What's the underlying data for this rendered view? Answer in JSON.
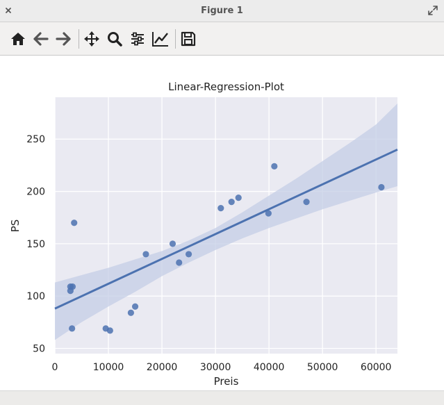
{
  "window": {
    "title": "Figure 1",
    "close_icon": "close-icon",
    "maximize_icon": "maximize-icon"
  },
  "toolbar": {
    "buttons": [
      {
        "name": "home-button",
        "icon": "home-icon"
      },
      {
        "name": "back-button",
        "icon": "arrow-left-icon"
      },
      {
        "name": "forward-button",
        "icon": "arrow-right-icon"
      },
      {
        "name": "pan-button",
        "icon": "move-icon"
      },
      {
        "name": "zoom-button",
        "icon": "magnifier-icon"
      },
      {
        "name": "subplots-button",
        "icon": "sliders-icon"
      },
      {
        "name": "axes-button",
        "icon": "line-chart-icon"
      },
      {
        "name": "save-button",
        "icon": "floppy-disk-icon"
      }
    ]
  },
  "colors": {
    "plot_background": "#eaeaf2",
    "grid": "#ffffff",
    "points": "#4c72b0",
    "line": "#4c72b0",
    "band": "#c4cde6"
  },
  "chart_data": {
    "type": "scatter",
    "title": "Linear-Regression-Plot",
    "xlabel": "Preis",
    "ylabel": "PS",
    "xlim": [
      0,
      64000
    ],
    "ylim": [
      45,
      290
    ],
    "xticks": [
      0,
      10000,
      20000,
      30000,
      40000,
      50000,
      60000
    ],
    "yticks": [
      50,
      100,
      150,
      200,
      250
    ],
    "grid": true,
    "points": [
      {
        "x": 2900,
        "y": 109
      },
      {
        "x": 3300,
        "y": 109
      },
      {
        "x": 2900,
        "y": 105
      },
      {
        "x": 3600,
        "y": 170
      },
      {
        "x": 3200,
        "y": 69
      },
      {
        "x": 9500,
        "y": 69
      },
      {
        "x": 10300,
        "y": 67
      },
      {
        "x": 14200,
        "y": 84
      },
      {
        "x": 15000,
        "y": 90
      },
      {
        "x": 17000,
        "y": 140
      },
      {
        "x": 22000,
        "y": 150
      },
      {
        "x": 23200,
        "y": 132
      },
      {
        "x": 25000,
        "y": 140
      },
      {
        "x": 31000,
        "y": 184
      },
      {
        "x": 33000,
        "y": 190
      },
      {
        "x": 34300,
        "y": 194
      },
      {
        "x": 39900,
        "y": 179
      },
      {
        "x": 41000,
        "y": 224
      },
      {
        "x": 47000,
        "y": 190
      },
      {
        "x": 61000,
        "y": 204
      }
    ],
    "regression": {
      "x": [
        0,
        64000
      ],
      "y": [
        88,
        240
      ]
    },
    "confidence_band": {
      "x": [
        0,
        5000,
        10000,
        15000,
        20000,
        25000,
        30000,
        35000,
        40000,
        45000,
        50000,
        55000,
        60000,
        64000
      ],
      "lower": [
        58,
        75,
        90,
        104,
        119,
        132,
        144,
        155,
        165,
        174,
        183,
        191,
        199,
        205
      ],
      "upper": [
        113,
        120,
        127,
        135,
        143,
        153,
        165,
        180,
        196,
        212,
        229,
        246,
        264,
        284
      ]
    }
  }
}
